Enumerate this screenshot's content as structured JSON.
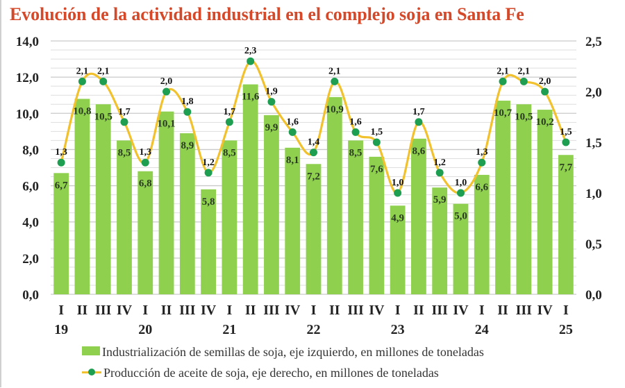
{
  "chart_data": {
    "type": "bar+line",
    "title": "Evolución de la actividad industrial en el complejo soja en Santa Fe",
    "categories": [
      "I",
      "II",
      "III",
      "IV",
      "I",
      "II",
      "III",
      "IV",
      "I",
      "II",
      "III",
      "IV",
      "I",
      "II",
      "III",
      "IV",
      "I",
      "II",
      "III",
      "IV",
      "I",
      "II",
      "III",
      "IV",
      "I"
    ],
    "year_labels": [
      {
        "index": 0,
        "label": "19"
      },
      {
        "index": 4,
        "label": "20"
      },
      {
        "index": 8,
        "label": "21"
      },
      {
        "index": 12,
        "label": "22"
      },
      {
        "index": 16,
        "label": "23"
      },
      {
        "index": 20,
        "label": "24"
      },
      {
        "index": 24,
        "label": "25"
      }
    ],
    "series": [
      {
        "name": "Industrialización de semillas de soja, eje izquierdo, en millones de toneladas",
        "type": "bar",
        "axis": "left",
        "color": "#8fd14f",
        "values": [
          6.7,
          10.8,
          10.5,
          8.5,
          6.8,
          10.1,
          8.9,
          5.8,
          8.5,
          11.6,
          9.9,
          8.1,
          7.2,
          10.9,
          8.5,
          7.6,
          4.9,
          8.6,
          5.9,
          5.0,
          6.6,
          10.7,
          10.5,
          10.2,
          7.7
        ],
        "labels": [
          "6,7",
          "10,8",
          "10,5",
          "8,5",
          "6,8",
          "10,1",
          "8,9",
          "5,8",
          "8,5",
          "11,6",
          "9,9",
          "8,1",
          "7,2",
          "10,9",
          "8,5",
          "7,6",
          "4,9",
          "8,6",
          "5,9",
          "5,0",
          "6,6",
          "10,7",
          "10,5",
          "10,2",
          "7,7"
        ]
      },
      {
        "name": "Producción de aceite de soja, eje derecho, en millones de toneladas",
        "type": "line",
        "axis": "right",
        "color": "#f2c12e",
        "marker_color": "#1e9e50",
        "values": [
          1.3,
          2.1,
          2.1,
          1.7,
          1.3,
          2.0,
          1.8,
          1.2,
          1.7,
          2.3,
          1.9,
          1.6,
          1.4,
          2.1,
          1.6,
          1.5,
          1.0,
          1.7,
          1.2,
          1.0,
          1.3,
          2.1,
          2.1,
          2.0,
          1.5
        ],
        "labels": [
          "1,3",
          "2,1",
          "2,1",
          "1,7",
          "1,3",
          "2,0",
          "1,8",
          "1,2",
          "1,7",
          "2,3",
          "1,9",
          "1,6",
          "1,4",
          "2,1",
          "1,6",
          "1,5",
          "1,0",
          "1,7",
          "1,2",
          "1,0",
          "1,3",
          "2,1",
          "2,1",
          "2,0",
          "1,5"
        ]
      }
    ],
    "y_left": {
      "min": 0,
      "max": 14,
      "ticks": [
        "0,0",
        "2,0",
        "4,0",
        "6,0",
        "8,0",
        "10,0",
        "12,0",
        "14,0"
      ],
      "tick_values": [
        0,
        2,
        4,
        6,
        8,
        10,
        12,
        14
      ]
    },
    "y_right": {
      "min": 0,
      "max": 2.5,
      "ticks": [
        "0,0",
        "0,5",
        "1,0",
        "1,5",
        "2,0",
        "2,5"
      ],
      "tick_values": [
        0,
        0.5,
        1.0,
        1.5,
        2.0,
        2.5
      ]
    },
    "grid": true,
    "legend_position": "bottom"
  }
}
